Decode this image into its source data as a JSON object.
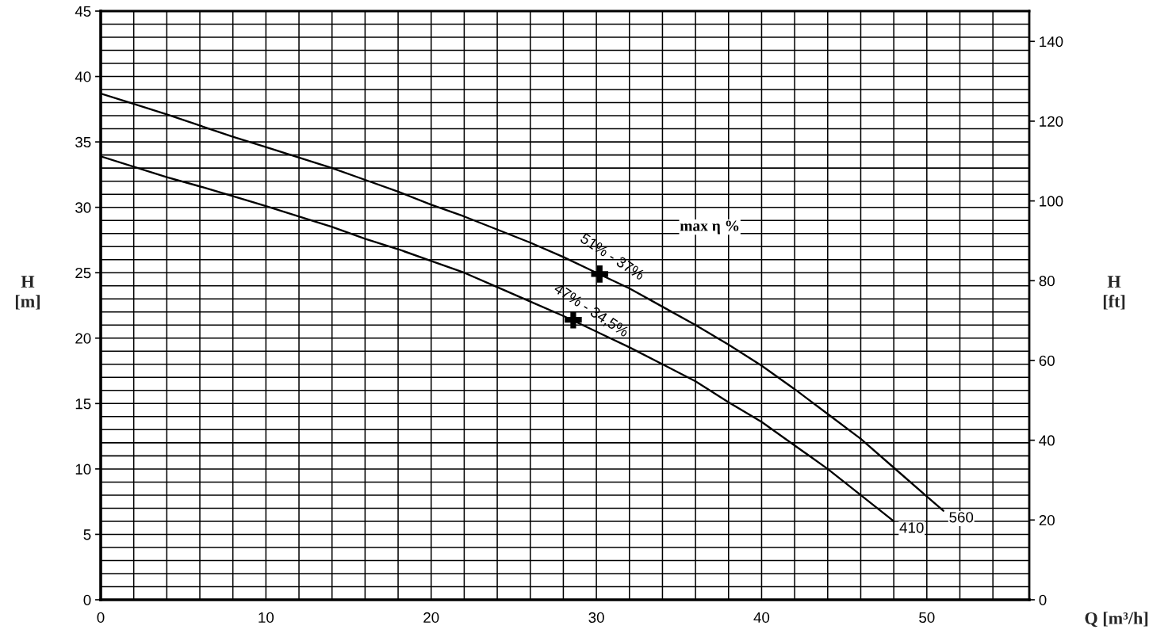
{
  "chart_data": {
    "type": "line",
    "xlabel": "Q [m³/h]",
    "ylabel": "H\n[m]",
    "y2label": "H\n[ft]",
    "xlim": [
      0,
      56.2
    ],
    "xticks": [
      0,
      {
        "value": 2,
        "label": null
      },
      {
        "value": 4,
        "label": null
      },
      {
        "value": 6,
        "label": null
      },
      {
        "value": 8,
        "label": null
      },
      10,
      {
        "value": 12,
        "label": null
      },
      {
        "value": 14,
        "label": null
      },
      {
        "value": 16,
        "label": null
      },
      {
        "value": 18,
        "label": null
      },
      20,
      {
        "value": 22,
        "label": null
      },
      {
        "value": 24,
        "label": null
      },
      {
        "value": 26,
        "label": null
      },
      {
        "value": 28,
        "label": null
      },
      30,
      {
        "value": 32,
        "label": null
      },
      {
        "value": 34,
        "label": null
      },
      {
        "value": 36,
        "label": null
      },
      {
        "value": 38,
        "label": null
      },
      40,
      {
        "value": 42,
        "label": null
      },
      {
        "value": 44,
        "label": null
      },
      {
        "value": 46,
        "label": null
      },
      {
        "value": 48,
        "label": null
      },
      50,
      {
        "value": 52,
        "label": null
      },
      {
        "value": 54,
        "label": null
      }
    ],
    "ylim": [
      0,
      45
    ],
    "yticks": [
      0,
      {
        "value": 1,
        "label": null
      },
      {
        "value": 2,
        "label": null
      },
      {
        "value": 3,
        "label": null
      },
      {
        "value": 4,
        "label": null
      },
      5,
      {
        "value": 6,
        "label": null
      },
      {
        "value": 7,
        "label": null
      },
      {
        "value": 8,
        "label": null
      },
      {
        "value": 9,
        "label": null
      },
      10,
      {
        "value": 11,
        "label": null
      },
      {
        "value": 12,
        "label": null
      },
      {
        "value": 13,
        "label": null
      },
      {
        "value": 14,
        "label": null
      },
      15,
      {
        "value": 16,
        "label": null
      },
      {
        "value": 17,
        "label": null
      },
      {
        "value": 18,
        "label": null
      },
      {
        "value": 19,
        "label": null
      },
      20,
      {
        "value": 21,
        "label": null
      },
      {
        "value": 22,
        "label": null
      },
      {
        "value": 23,
        "label": null
      },
      {
        "value": 24,
        "label": null
      },
      25,
      {
        "value": 26,
        "label": null
      },
      {
        "value": 27,
        "label": null
      },
      {
        "value": 28,
        "label": null
      },
      {
        "value": 29,
        "label": null
      },
      30,
      {
        "value": 31,
        "label": null
      },
      {
        "value": 32,
        "label": null
      },
      {
        "value": 33,
        "label": null
      },
      {
        "value": 34,
        "label": null
      },
      35,
      {
        "value": 36,
        "label": null
      },
      {
        "value": 37,
        "label": null
      },
      {
        "value": 38,
        "label": null
      },
      {
        "value": 39,
        "label": null
      },
      40,
      {
        "value": 41,
        "label": null
      },
      {
        "value": 42,
        "label": null
      },
      {
        "value": 43,
        "label": null
      },
      {
        "value": 44,
        "label": null
      },
      45
    ],
    "y2lim": [
      0,
      147.6
    ],
    "y2ticks": [
      0,
      20,
      40,
      60,
      80,
      100,
      120,
      140
    ],
    "grid": true,
    "legend": false,
    "line_style": "solid",
    "series": [
      {
        "name": "410",
        "color": "#000000",
        "x": [
          0,
          4,
          6,
          10,
          14,
          16,
          18,
          20,
          22,
          24,
          26,
          28,
          30,
          32,
          34,
          36,
          38,
          40,
          42,
          44,
          46,
          48
        ],
        "values": [
          33.9,
          32.3,
          31.6,
          30.1,
          28.5,
          27.6,
          26.8,
          25.9,
          25.0,
          23.9,
          22.8,
          21.7,
          20.5,
          19.3,
          18.0,
          16.7,
          15.1,
          13.6,
          11.8,
          10.0,
          8.0,
          6.0
        ]
      },
      {
        "name": "560",
        "color": "#000000",
        "x": [
          0,
          2,
          4,
          8,
          10,
          12,
          14,
          16,
          18,
          20,
          22,
          24,
          26,
          28,
          30,
          32,
          34,
          36,
          38,
          40,
          42,
          44,
          46,
          48,
          50,
          51
        ],
        "values": [
          38.7,
          37.9,
          37.1,
          35.4,
          34.6,
          33.8,
          33.0,
          32.1,
          31.2,
          30.2,
          29.3,
          28.3,
          27.3,
          26.2,
          25.0,
          23.8,
          22.4,
          21.0,
          19.5,
          17.9,
          16.1,
          14.2,
          12.3,
          10.1,
          7.9,
          6.8
        ]
      },
      {
        "type": "scatter",
        "marker": "cross",
        "color": "#000000",
        "x": [
          30.2,
          28.6
        ],
        "values": [
          24.9,
          21.4
        ]
      }
    ],
    "annotations": [
      {
        "text": "51% - 37%",
        "x": 30.2,
        "y": 24.9
      },
      {
        "text": "47% - 34,5%",
        "x": 28.6,
        "y": 21.4
      },
      "max η %"
    ]
  }
}
